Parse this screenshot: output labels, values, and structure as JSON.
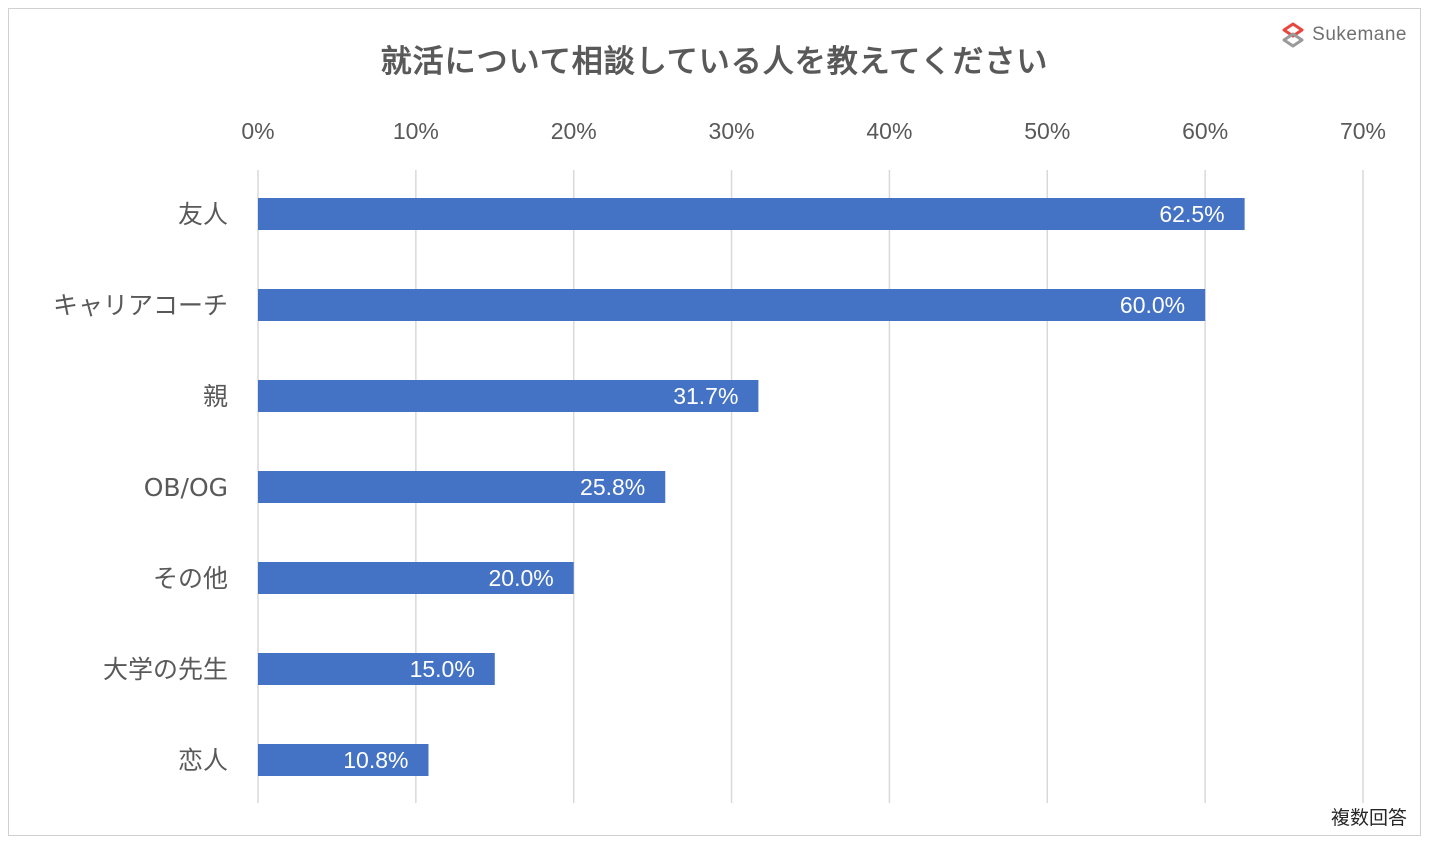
{
  "brand": {
    "name": "Sukemane",
    "logo_color": "#e8473f"
  },
  "note": "複数回答",
  "colors": {
    "bar": "#4472c4",
    "grid": "#d9d9d9",
    "text": "#595959"
  },
  "chart_data": {
    "type": "bar",
    "orientation": "horizontal",
    "title": "就活について相談している人を教えてください",
    "categories": [
      "友人",
      "キャリアコーチ",
      "親",
      "OB/OG",
      "その他",
      "大学の先生",
      "恋人"
    ],
    "values": [
      62.5,
      60.0,
      31.7,
      25.8,
      20.0,
      15.0,
      10.8
    ],
    "data_labels": [
      "62.5%",
      "60.0%",
      "31.7%",
      "25.8%",
      "20.0%",
      "15.0%",
      "10.8%"
    ],
    "xlim": [
      0,
      70
    ],
    "ticks": [
      0,
      10,
      20,
      30,
      40,
      50,
      60,
      70
    ],
    "tick_labels": [
      "0%",
      "10%",
      "20%",
      "30%",
      "40%",
      "50%",
      "60%",
      "70%"
    ],
    "axis_position": "top",
    "grid": true,
    "legend": "none"
  }
}
